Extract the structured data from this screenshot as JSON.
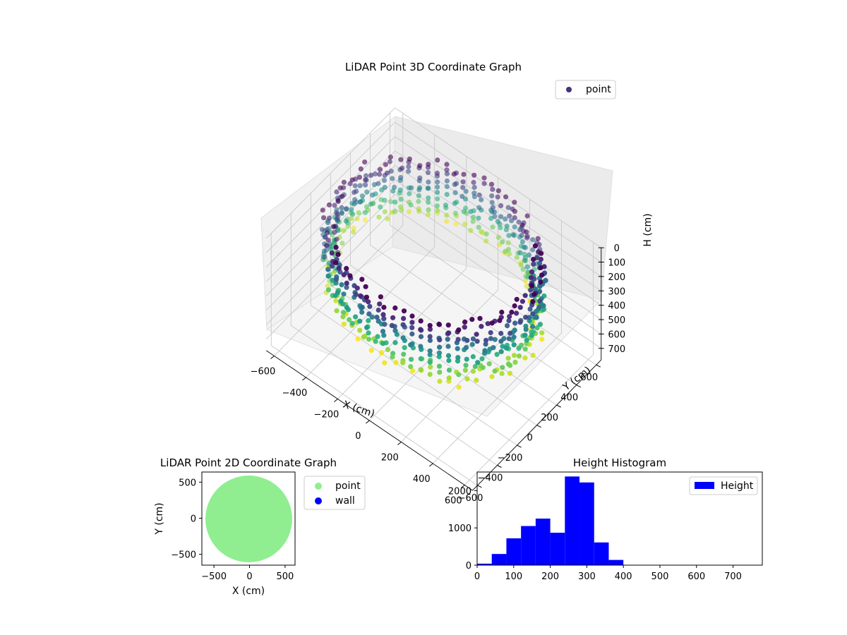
{
  "chart_data": [
    {
      "type": "scatter",
      "projection": "3d",
      "title": "LiDAR Point 3D Coordinate Graph",
      "xlabel": "X (cm)",
      "ylabel": "Y (cm)",
      "zlabel": "H (cm)",
      "xlim": [
        -650,
        650
      ],
      "ylim": [
        -650,
        650
      ],
      "zlim": [
        780,
        0
      ],
      "z_inverted": true,
      "xticks": [
        "−600",
        "−400",
        "−200",
        "0",
        "200",
        "400",
        "600"
      ],
      "yticks": [
        "−600",
        "−400",
        "−200",
        "0",
        "200",
        "400",
        "600"
      ],
      "zticks": [
        "0",
        "100",
        "200",
        "300",
        "400",
        "500",
        "600",
        "700"
      ],
      "grid": true,
      "colormap": "viridis",
      "legend": {
        "position": "top-right",
        "entries": [
          {
            "label": "point",
            "color": "#46327e"
          }
        ]
      },
      "shape": "ring",
      "ring_radius_range": [
        430,
        600
      ],
      "height_range": [
        0,
        400
      ]
    },
    {
      "type": "scatter",
      "title": "LiDAR Point 2D Coordinate Graph",
      "xlabel": "X (cm)",
      "ylabel": "Y (cm)",
      "xlim": [
        -670,
        640
      ],
      "ylim": [
        -650,
        640
      ],
      "xticks": [
        "−500",
        "0",
        "500"
      ],
      "yticks": [
        "−500",
        "0",
        "500"
      ],
      "series": [
        {
          "name": "point",
          "color": "#90ee90",
          "shape": "filled disk",
          "center": [
            -10,
            -10
          ],
          "radius": 610
        },
        {
          "name": "wall",
          "color": "#0000ff",
          "points": []
        }
      ],
      "legend": {
        "position": "outside right"
      }
    },
    {
      "type": "bar",
      "title": "Height Histogram",
      "xlabel": "",
      "ylabel": "",
      "xlim": [
        0,
        780
      ],
      "ylim": [
        0,
        2500
      ],
      "xticks": [
        "0",
        "100",
        "200",
        "300",
        "400",
        "500",
        "600",
        "700"
      ],
      "yticks": [
        "0",
        "1000",
        "2000"
      ],
      "color": "#0000ff",
      "bins": [
        {
          "x0": 0,
          "x1": 40,
          "count": 40
        },
        {
          "x0": 40,
          "x1": 80,
          "count": 300
        },
        {
          "x0": 80,
          "x1": 120,
          "count": 720
        },
        {
          "x0": 120,
          "x1": 160,
          "count": 1050
        },
        {
          "x0": 160,
          "x1": 200,
          "count": 1250
        },
        {
          "x0": 200,
          "x1": 240,
          "count": 870
        },
        {
          "x0": 240,
          "x1": 280,
          "count": 2380
        },
        {
          "x0": 280,
          "x1": 320,
          "count": 2220
        },
        {
          "x0": 320,
          "x1": 360,
          "count": 610
        },
        {
          "x0": 360,
          "x1": 400,
          "count": 140
        },
        {
          "x0": 400,
          "x1": 780,
          "count": 0
        }
      ],
      "legend": {
        "position": "top-right",
        "entries": [
          {
            "label": "Height",
            "color": "#0000ff"
          }
        ]
      }
    }
  ]
}
